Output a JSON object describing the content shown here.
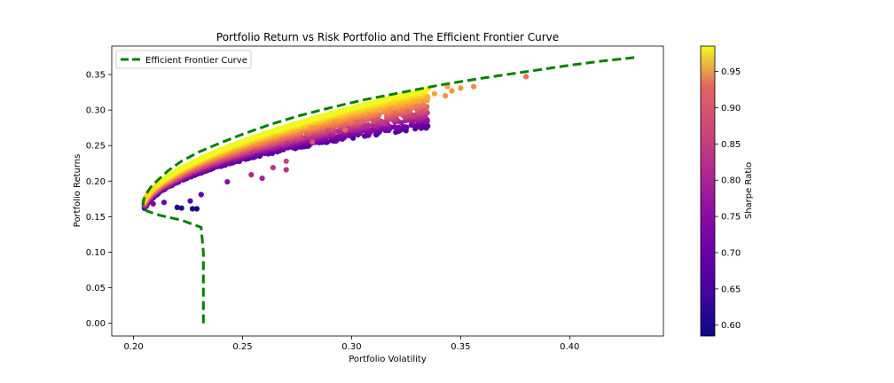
{
  "chart_data": {
    "type": "scatter",
    "title": "Portfolio Return vs Risk Portfolio and The Efficient Frontier Curve",
    "xlabel": "Portfolio Volatility",
    "ylabel": "Portfolio Returns",
    "xlim": [
      0.19,
      0.443
    ],
    "ylim": [
      -0.018,
      0.39
    ],
    "x_ticks": [
      "0.20",
      "0.25",
      "0.30",
      "0.35",
      "0.40"
    ],
    "y_ticks": [
      "0.00",
      "0.05",
      "0.10",
      "0.15",
      "0.20",
      "0.25",
      "0.30",
      "0.35"
    ],
    "grid": false,
    "legend": {
      "placement": "top-left",
      "entries": [
        "Efficient Frontier Curve"
      ]
    },
    "colormap": "plasma",
    "colorbar": {
      "label": "Sharpe Ratio",
      "range": [
        0.585,
        0.985
      ],
      "ticks": [
        "0.60",
        "0.65",
        "0.70",
        "0.75",
        "0.80",
        "0.85",
        "0.90",
        "0.95"
      ]
    },
    "frontier": {
      "name": "Efficient Frontier Curve",
      "color": "#008000",
      "style": "dashed",
      "x": [
        0.232,
        0.232,
        0.232,
        0.231,
        0.222,
        0.212,
        0.206,
        0.2045,
        0.2043,
        0.2048,
        0.206,
        0.208,
        0.212,
        0.216,
        0.222,
        0.23,
        0.24,
        0.25,
        0.262,
        0.276,
        0.29,
        0.305,
        0.32,
        0.34,
        0.36,
        0.38,
        0.4,
        0.415,
        0.43
      ],
      "y": [
        0.0,
        0.05,
        0.1,
        0.135,
        0.145,
        0.152,
        0.158,
        0.163,
        0.168,
        0.175,
        0.183,
        0.192,
        0.204,
        0.215,
        0.228,
        0.241,
        0.254,
        0.266,
        0.279,
        0.292,
        0.303,
        0.314,
        0.323,
        0.335,
        0.345,
        0.354,
        0.363,
        0.369,
        0.374
      ]
    },
    "scatter_bulk": {
      "n_points": 3200,
      "x_range": [
        0.205,
        0.335
      ],
      "return_formula": "upper frontier minus band",
      "sharpe_range": [
        0.63,
        0.985
      ]
    },
    "outliers": [
      {
        "x": 0.38,
        "y": 0.347,
        "sharpe": 0.84
      },
      {
        "x": 0.356,
        "y": 0.333,
        "sharpe": 0.87
      },
      {
        "x": 0.35,
        "y": 0.331,
        "sharpe": 0.88
      },
      {
        "x": 0.344,
        "y": 0.333,
        "sharpe": 0.9
      },
      {
        "x": 0.346,
        "y": 0.327,
        "sharpe": 0.89
      },
      {
        "x": 0.338,
        "y": 0.323,
        "sharpe": 0.9
      },
      {
        "x": 0.343,
        "y": 0.32,
        "sharpe": 0.88
      },
      {
        "x": 0.33,
        "y": 0.313,
        "sharpe": 0.9
      },
      {
        "x": 0.321,
        "y": 0.303,
        "sharpe": 0.88
      },
      {
        "x": 0.317,
        "y": 0.298,
        "sharpe": 0.86
      },
      {
        "x": 0.3,
        "y": 0.283,
        "sharpe": 0.84
      },
      {
        "x": 0.297,
        "y": 0.272,
        "sharpe": 0.83
      },
      {
        "x": 0.282,
        "y": 0.255,
        "sharpe": 0.8
      },
      {
        "x": 0.27,
        "y": 0.228,
        "sharpe": 0.78
      },
      {
        "x": 0.264,
        "y": 0.219,
        "sharpe": 0.76
      },
      {
        "x": 0.27,
        "y": 0.216,
        "sharpe": 0.76
      },
      {
        "x": 0.254,
        "y": 0.209,
        "sharpe": 0.74
      },
      {
        "x": 0.259,
        "y": 0.204,
        "sharpe": 0.73
      },
      {
        "x": 0.243,
        "y": 0.199,
        "sharpe": 0.7
      },
      {
        "x": 0.231,
        "y": 0.181,
        "sharpe": 0.66
      },
      {
        "x": 0.226,
        "y": 0.172,
        "sharpe": 0.65
      },
      {
        "x": 0.22,
        "y": 0.163,
        "sharpe": 0.6
      },
      {
        "x": 0.222,
        "y": 0.162,
        "sharpe": 0.6
      },
      {
        "x": 0.227,
        "y": 0.161,
        "sharpe": 0.59
      },
      {
        "x": 0.229,
        "y": 0.161,
        "sharpe": 0.59
      },
      {
        "x": 0.214,
        "y": 0.17,
        "sharpe": 0.66
      },
      {
        "x": 0.209,
        "y": 0.168,
        "sharpe": 0.68
      },
      {
        "x": 0.206,
        "y": 0.165,
        "sharpe": 0.7
      }
    ]
  }
}
